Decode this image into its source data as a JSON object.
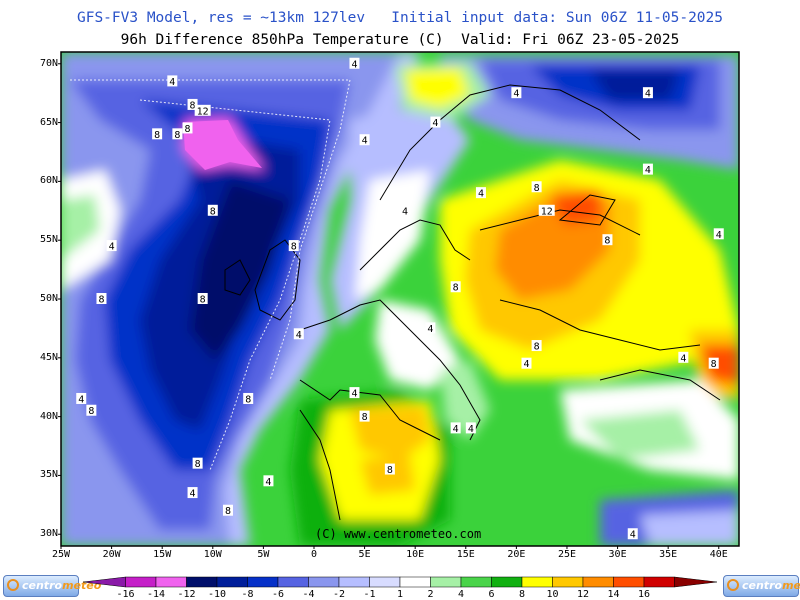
{
  "header": {
    "line1": "GFS-FV3 Model, res = ~13km 127lev   Initial input data: Sun 06Z 11-05-2025",
    "line2": "96h Difference 850hPa Temperature (C)  Valid: Fri 06Z 23-05-2025"
  },
  "map": {
    "lon_range": [
      -25,
      42
    ],
    "lat_range": [
      29,
      71
    ],
    "lat_ticks": [
      "70N",
      "65N",
      "60N",
      "55N",
      "50N",
      "45N",
      "40N",
      "35N",
      "30N"
    ],
    "lat_values": [
      70,
      65,
      60,
      55,
      50,
      45,
      40,
      35,
      30
    ],
    "lon_ticks": [
      "25W",
      "20W",
      "15W",
      "10W",
      "5W",
      "0",
      "5E",
      "10E",
      "15E",
      "20E",
      "25E",
      "30E",
      "35E",
      "40E"
    ],
    "lon_values": [
      -25,
      -20,
      -15,
      -10,
      -5,
      0,
      5,
      10,
      15,
      20,
      25,
      30,
      35,
      40
    ],
    "credit": "(C) www.centrometeo.com",
    "contour_labels": [
      {
        "text": "4",
        "lon": -14,
        "lat": 68.5
      },
      {
        "text": "8",
        "lon": -12,
        "lat": 66.5
      },
      {
        "text": "12",
        "lon": -11,
        "lat": 66
      },
      {
        "text": "8",
        "lon": -13.5,
        "lat": 64
      },
      {
        "text": "8",
        "lon": -12.5,
        "lat": 64.5
      },
      {
        "text": "8",
        "lon": -15.5,
        "lat": 64
      },
      {
        "text": "4",
        "lon": -20,
        "lat": 54.5
      },
      {
        "text": "8",
        "lon": -10,
        "lat": 57.5
      },
      {
        "text": "8",
        "lon": -2,
        "lat": 54.5
      },
      {
        "text": "8",
        "lon": -21,
        "lat": 50
      },
      {
        "text": "8",
        "lon": -11,
        "lat": 50
      },
      {
        "text": "4",
        "lon": -1.5,
        "lat": 47
      },
      {
        "text": "4",
        "lon": -23,
        "lat": 41.5
      },
      {
        "text": "8",
        "lon": -22,
        "lat": 40.5
      },
      {
        "text": "8",
        "lon": -6.5,
        "lat": 41.5
      },
      {
        "text": "8",
        "lon": -11.5,
        "lat": 36
      },
      {
        "text": "4",
        "lon": -12,
        "lat": 33.5
      },
      {
        "text": "8",
        "lon": -8.5,
        "lat": 32
      },
      {
        "text": "4",
        "lon": -4.5,
        "lat": 34.5
      },
      {
        "text": "4",
        "lon": 4,
        "lat": 70
      },
      {
        "text": "4",
        "lon": 20,
        "lat": 67.5
      },
      {
        "text": "4",
        "lon": 33,
        "lat": 67.5
      },
      {
        "text": "4",
        "lon": 5,
        "lat": 63.5
      },
      {
        "text": "4",
        "lon": 12,
        "lat": 65
      },
      {
        "text": "4",
        "lon": 9,
        "lat": 57.5
      },
      {
        "text": "4",
        "lon": 16.5,
        "lat": 59
      },
      {
        "text": "8",
        "lon": 22,
        "lat": 59.5
      },
      {
        "text": "12",
        "lon": 23,
        "lat": 57.5
      },
      {
        "text": "8",
        "lon": 29,
        "lat": 55
      },
      {
        "text": "4",
        "lon": 33,
        "lat": 61
      },
      {
        "text": "4",
        "lon": 40,
        "lat": 55.5
      },
      {
        "text": "8",
        "lon": 14,
        "lat": 51
      },
      {
        "text": "4",
        "lon": 11.5,
        "lat": 47.5
      },
      {
        "text": "8",
        "lon": 22,
        "lat": 46
      },
      {
        "text": "4",
        "lon": 21,
        "lat": 44.5
      },
      {
        "text": "4",
        "lon": 36.5,
        "lat": 45
      },
      {
        "text": "8",
        "lon": 39.5,
        "lat": 44.5
      },
      {
        "text": "4",
        "lon": 4,
        "lat": 42
      },
      {
        "text": "8",
        "lon": 5,
        "lat": 40
      },
      {
        "text": "4",
        "lon": 14,
        "lat": 39
      },
      {
        "text": "4",
        "lon": 15.5,
        "lat": 39
      },
      {
        "text": "8",
        "lon": 7.5,
        "lat": 35.5
      },
      {
        "text": "4",
        "lon": 31.5,
        "lat": 30
      }
    ]
  },
  "colorbar": {
    "labels": [
      "-16",
      "-14",
      "-12",
      "-10",
      "-8",
      "-6",
      "-4",
      "-2",
      "-1",
      "1",
      "2",
      "4",
      "6",
      "8",
      "10",
      "12",
      "14",
      "16"
    ],
    "colors": [
      "#8a1aa8",
      "#c51fc8",
      "#f062ee",
      "#000e6a",
      "#001e9a",
      "#0530c8",
      "#5663e2",
      "#8a96ee",
      "#b6beff",
      "#d8dcff",
      "#ffffff",
      "#a6f0a6",
      "#4ad44a",
      "#11b011",
      "#ffff00",
      "#ffc800",
      "#ff8c00",
      "#ff4e00",
      "#d00000",
      "#8a0000"
    ],
    "logo_text_1": "centro",
    "logo_text_2": "meteo"
  }
}
